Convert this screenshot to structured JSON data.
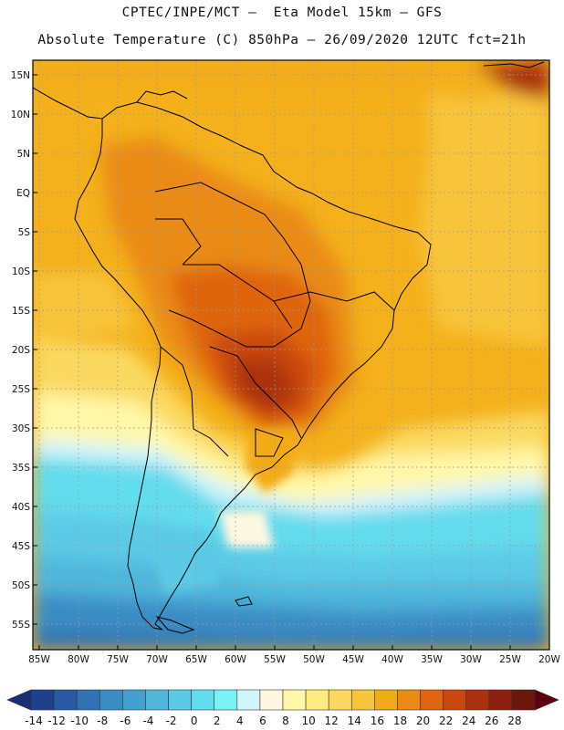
{
  "title": {
    "line1": "CPTEC/INPE/MCT –  Eta Model 15km – GFS",
    "line2": "Absolute Temperature (C) 850hPa – 26/09/2020 12UTC fct=21h"
  },
  "map": {
    "projection": "lat-lon",
    "lon_range": [
      -85,
      -20
    ],
    "lat_range": [
      -57,
      16
    ],
    "lat_ticks": [
      "15N",
      "10N",
      "5N",
      "EQ",
      "5S",
      "10S",
      "15S",
      "20S",
      "25S",
      "30S",
      "35S",
      "40S",
      "45S",
      "50S",
      "55S"
    ],
    "lon_ticks": [
      "85W",
      "80W",
      "75W",
      "70W",
      "65W",
      "60W",
      "55W",
      "50W",
      "45W",
      "40W",
      "35W",
      "30W",
      "25W",
      "20W"
    ],
    "grid": true,
    "field_summary": "Warmest (24–26 C) over central/southern Brazil and Paraguay; cold (-4 to 4 C) south of 35S"
  },
  "colorbar": {
    "labels": [
      "-14",
      "-12",
      "-10",
      "-8",
      "-6",
      "-4",
      "-2",
      "0",
      "2",
      "4",
      "6",
      "8",
      "10",
      "12",
      "14",
      "16",
      "18",
      "20",
      "22",
      "24",
      "26",
      "28"
    ],
    "colors": [
      "#1f3f8f",
      "#275aa5",
      "#2f72b5",
      "#3a8cc4",
      "#43a0cf",
      "#4fb6dc",
      "#5ccae6",
      "#63dced",
      "#78f2f4",
      "#d4f4fb",
      "#fff8e0",
      "#fff7a8",
      "#ffec7e",
      "#fbd961",
      "#f8c43b",
      "#f2ab18",
      "#ea8b13",
      "#df6510",
      "#c9470f",
      "#aa300f",
      "#8a200d",
      "#6d160c"
    ],
    "under_color": "#1a2f78",
    "over_color": "#5e0010"
  }
}
